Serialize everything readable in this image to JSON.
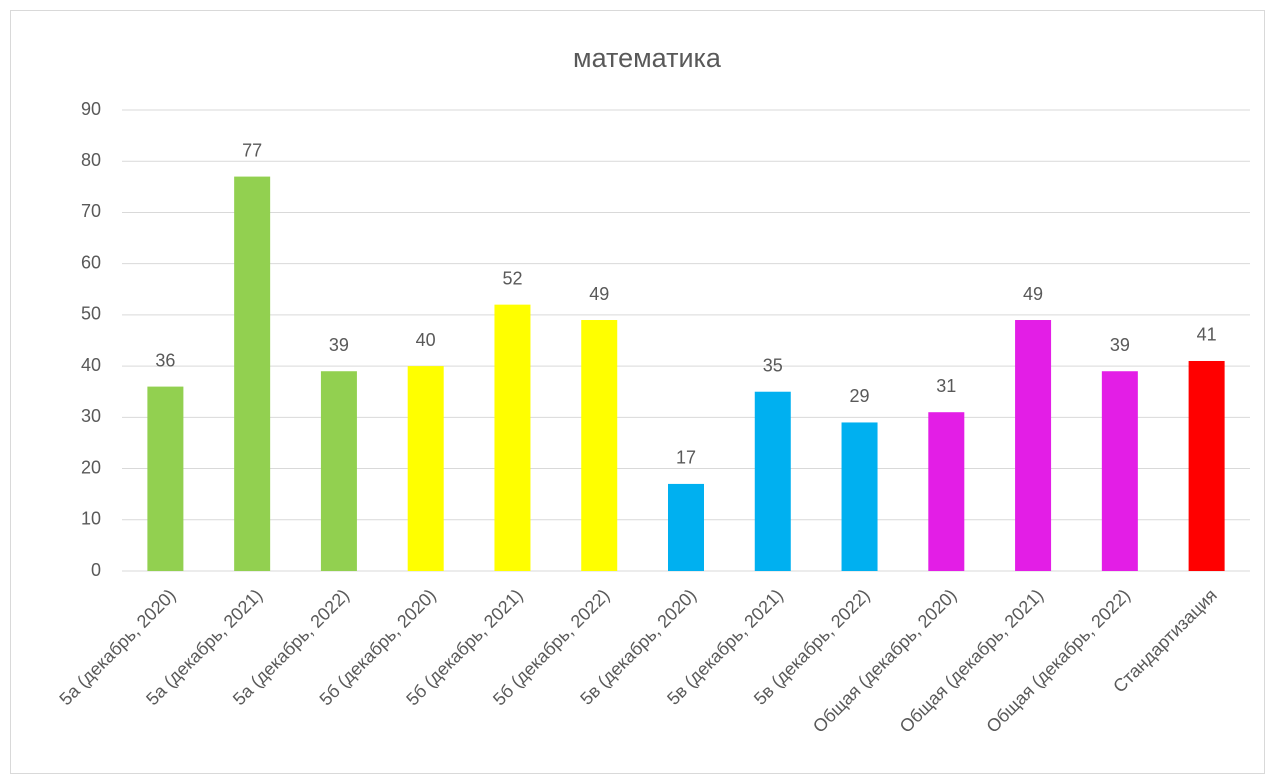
{
  "chart_data": {
    "type": "bar",
    "title": "математика",
    "categories": [
      "5а (декабрь, 2020)",
      "5а (декабрь, 2021)",
      "5а (декабрь, 2022)",
      "5б (декабрь, 2020)",
      "5б (декабрь, 2021)",
      "5б (декабрь, 2022)",
      "5в (декабрь, 2020)",
      "5в (декабрь, 2021)",
      "5в (декабрь, 2022)",
      "Общая (декабрь, 2020)",
      "Общая (декабрь, 2021)",
      "Общая (декабрь, 2022)",
      "Стандартизация"
    ],
    "values": [
      36,
      77,
      39,
      40,
      52,
      49,
      17,
      35,
      29,
      31,
      49,
      39,
      41
    ],
    "colors": [
      "#92d050",
      "#92d050",
      "#92d050",
      "#ffff00",
      "#ffff00",
      "#ffff00",
      "#00b0f0",
      "#00b0f0",
      "#00b0f0",
      "#e31ee6",
      "#e31ee6",
      "#e31ee6",
      "#ff0000"
    ],
    "ylim": [
      0,
      90
    ],
    "yticks": [
      0,
      10,
      20,
      30,
      40,
      50,
      60,
      70,
      80,
      90
    ],
    "grid": true
  }
}
